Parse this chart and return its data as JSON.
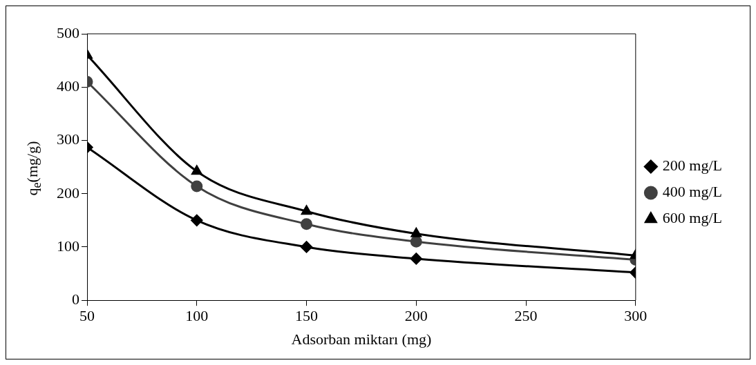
{
  "chart_data": {
    "type": "line",
    "xlabel": "Adsorban miktarı (mg)",
    "ylabel": "q$_{e}$(mg/g)",
    "x": [
      50,
      100,
      150,
      200,
      300
    ],
    "series": [
      {
        "name": "200 mg/L",
        "color": "#000000",
        "marker": "diamond",
        "values": [
          287,
          150,
          100,
          78,
          52
        ]
      },
      {
        "name": "400 mg/L",
        "color": "#404040",
        "marker": "circle",
        "values": [
          410,
          214,
          143,
          110,
          76
        ]
      },
      {
        "name": "600 mg/L",
        "color": "#000000",
        "marker": "triangle",
        "values": [
          460,
          242,
          167,
          125,
          84
        ]
      }
    ],
    "xlim": [
      50,
      300
    ],
    "xticks": [
      50,
      100,
      150,
      200,
      250,
      300
    ],
    "ylim": [
      0,
      500
    ],
    "yticks": [
      0,
      100,
      200,
      300,
      400,
      500
    ],
    "grid": false,
    "legend": "right"
  }
}
